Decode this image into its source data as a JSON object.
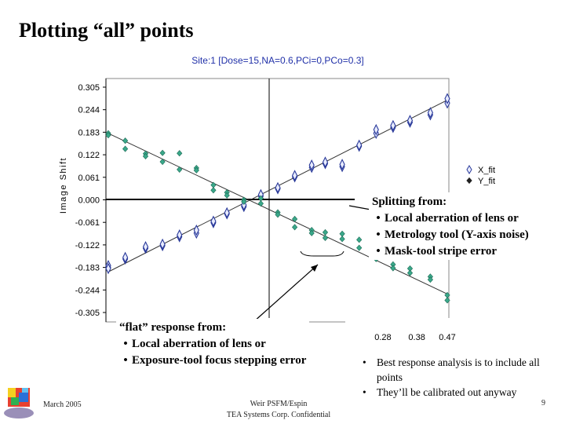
{
  "slide": {
    "title": "Plotting “all” points"
  },
  "chart_data": {
    "type": "scatter",
    "title": "Site:1 [Dose=15,NA=0.6,PCi=0,PCo=0.3]",
    "ylabel": "Image Shift",
    "xlabel": "",
    "y_ticks": [
      "0.305",
      "0.244",
      "0.183",
      "0.122",
      "0.061",
      "0.000",
      "-0.061",
      "-0.122",
      "-0.183",
      "-0.244",
      "-0.305"
    ],
    "x_ticks_visible": [
      "0.28",
      "0.38",
      "0.47"
    ],
    "ylim": [
      -0.305,
      0.305
    ],
    "xlim": [
      -0.53,
      0.47
    ],
    "series": [
      {
        "name": "X_fit",
        "marker": "diamond-open",
        "color": "#2a3a9a",
        "points": [
          [
            -0.53,
            -0.183
          ],
          [
            -0.53,
            -0.178
          ],
          [
            -0.53,
            -0.186
          ],
          [
            -0.48,
            -0.16
          ],
          [
            -0.48,
            -0.156
          ],
          [
            -0.42,
            -0.131
          ],
          [
            -0.42,
            -0.127
          ],
          [
            -0.37,
            -0.124
          ],
          [
            -0.37,
            -0.12
          ],
          [
            -0.32,
            -0.1
          ],
          [
            -0.32,
            -0.095
          ],
          [
            -0.27,
            -0.09
          ],
          [
            -0.27,
            -0.082
          ],
          [
            -0.22,
            -0.062
          ],
          [
            -0.22,
            -0.058
          ],
          [
            -0.18,
            -0.038
          ],
          [
            -0.18,
            -0.035
          ],
          [
            -0.13,
            -0.018
          ],
          [
            -0.13,
            -0.014
          ],
          [
            -0.08,
            0.01
          ],
          [
            -0.08,
            0.014
          ],
          [
            -0.03,
            0.03
          ],
          [
            -0.03,
            0.033
          ],
          [
            0.02,
            0.062
          ],
          [
            0.02,
            0.066
          ],
          [
            0.07,
            0.088
          ],
          [
            0.07,
            0.094
          ],
          [
            0.11,
            0.098
          ],
          [
            0.11,
            0.102
          ],
          [
            0.16,
            0.09
          ],
          [
            0.16,
            0.096
          ],
          [
            0.21,
            0.145
          ],
          [
            0.21,
            0.148
          ],
          [
            0.26,
            0.18
          ],
          [
            0.26,
            0.19
          ],
          [
            0.31,
            0.196
          ],
          [
            0.31,
            0.201
          ],
          [
            0.36,
            0.21
          ],
          [
            0.36,
            0.215
          ],
          [
            0.42,
            0.23
          ],
          [
            0.42,
            0.236
          ],
          [
            0.47,
            0.262
          ],
          [
            0.47,
            0.274
          ]
        ]
      },
      {
        "name": "Y_fit",
        "marker": "diamond-filled",
        "color": "#3aa88a",
        "points": [
          [
            -0.53,
            0.18
          ],
          [
            -0.53,
            0.175
          ],
          [
            -0.48,
            0.16
          ],
          [
            -0.48,
            0.138
          ],
          [
            -0.42,
            0.125
          ],
          [
            -0.42,
            0.118
          ],
          [
            -0.37,
            0.127
          ],
          [
            -0.37,
            0.103
          ],
          [
            -0.32,
            0.126
          ],
          [
            -0.32,
            0.082
          ],
          [
            -0.27,
            0.086
          ],
          [
            -0.27,
            0.08
          ],
          [
            -0.22,
            0.04
          ],
          [
            -0.22,
            0.026
          ],
          [
            -0.18,
            0.02
          ],
          [
            -0.18,
            0.012
          ],
          [
            -0.13,
            0.0
          ],
          [
            -0.13,
            -0.005
          ],
          [
            -0.08,
            0.004
          ],
          [
            -0.08,
            -0.01
          ],
          [
            -0.03,
            -0.034
          ],
          [
            -0.03,
            -0.04
          ],
          [
            0.02,
            -0.052
          ],
          [
            0.02,
            -0.074
          ],
          [
            0.07,
            -0.082
          ],
          [
            0.07,
            -0.09
          ],
          [
            0.11,
            -0.088
          ],
          [
            0.11,
            -0.103
          ],
          [
            0.16,
            -0.092
          ],
          [
            0.16,
            -0.106
          ],
          [
            0.21,
            -0.108
          ],
          [
            0.21,
            -0.13
          ],
          [
            0.26,
            -0.148
          ],
          [
            0.26,
            -0.16
          ],
          [
            0.31,
            -0.175
          ],
          [
            0.31,
            -0.185
          ],
          [
            0.36,
            -0.186
          ],
          [
            0.36,
            -0.198
          ],
          [
            0.42,
            -0.208
          ],
          [
            0.42,
            -0.216
          ],
          [
            0.47,
            -0.258
          ],
          [
            0.47,
            -0.272
          ]
        ]
      }
    ],
    "fit_lines": [
      {
        "series": "X_fit",
        "from": [
          -0.53,
          -0.195
        ],
        "to": [
          0.47,
          0.27
        ]
      },
      {
        "series": "Y_fit",
        "from": [
          -0.53,
          0.18
        ],
        "to": [
          0.47,
          -0.255
        ]
      }
    ],
    "legend": "right",
    "legend_placement": "middle-right",
    "grid": false
  },
  "callouts": {
    "split_header": "Splitting from:",
    "split_items": [
      "Local aberration of lens or",
      "Metrology tool  (Y-axis noise)",
      "Mask-tool stripe error"
    ],
    "flat_header": "“flat” response from:",
    "flat_items": [
      "Local aberration of lens or",
      "Exposure-tool focus stepping error"
    ]
  },
  "analysis": {
    "items": [
      "Best response analysis is to include all points",
      "They’ll be calibrated out anyway"
    ]
  },
  "footer": {
    "date": "March 2005",
    "author": "Weir PSFM/Espin",
    "company": "TEA Systems Corp. Confidential",
    "page": "9"
  }
}
